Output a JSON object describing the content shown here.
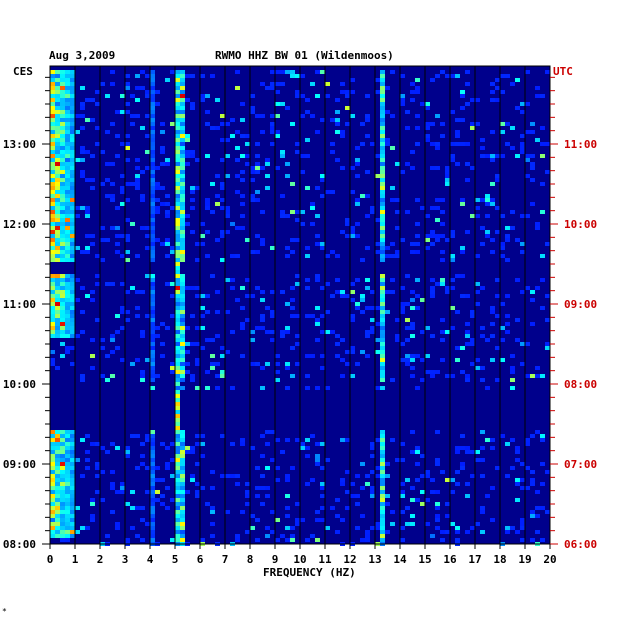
{
  "chart_data": {
    "type": "heatmap",
    "date": "Aug 3,2009",
    "title": "RWMO HHZ BW 01 (Wildenmoos)",
    "xlabel": "FREQUENCY (HZ)",
    "left_axis_label": "CES",
    "right_axis_label": "UTC",
    "xlim": [
      0,
      20
    ],
    "x_ticks": [
      "0",
      "1",
      "2",
      "3",
      "4",
      "5",
      "6",
      "7",
      "8",
      "9",
      "10",
      "11",
      "12",
      "13",
      "14",
      "15",
      "16",
      "17",
      "18",
      "19",
      "20"
    ],
    "y_ticks_left": [
      "13:00",
      "12:00",
      "11:00",
      "10:00",
      "09:00",
      "08:00"
    ],
    "y_ticks_right": [
      "11:00",
      "10:00",
      "09:00",
      "08:00",
      "07:00",
      "06:00"
    ],
    "time_range_ces": [
      "08:00",
      "13:55"
    ],
    "gaps_ces": [
      [
        "11:23",
        "11:31"
      ],
      [
        "09:58",
        "10:01"
      ],
      [
        "09:25",
        "09:56"
      ]
    ],
    "persistent_lines_hz": [
      5.1,
      5.3,
      13.3
    ],
    "colors": {
      "background": "#000080",
      "axis_right": "#cc0000",
      "axis_left": "#000000"
    }
  },
  "corner_mark": "*"
}
